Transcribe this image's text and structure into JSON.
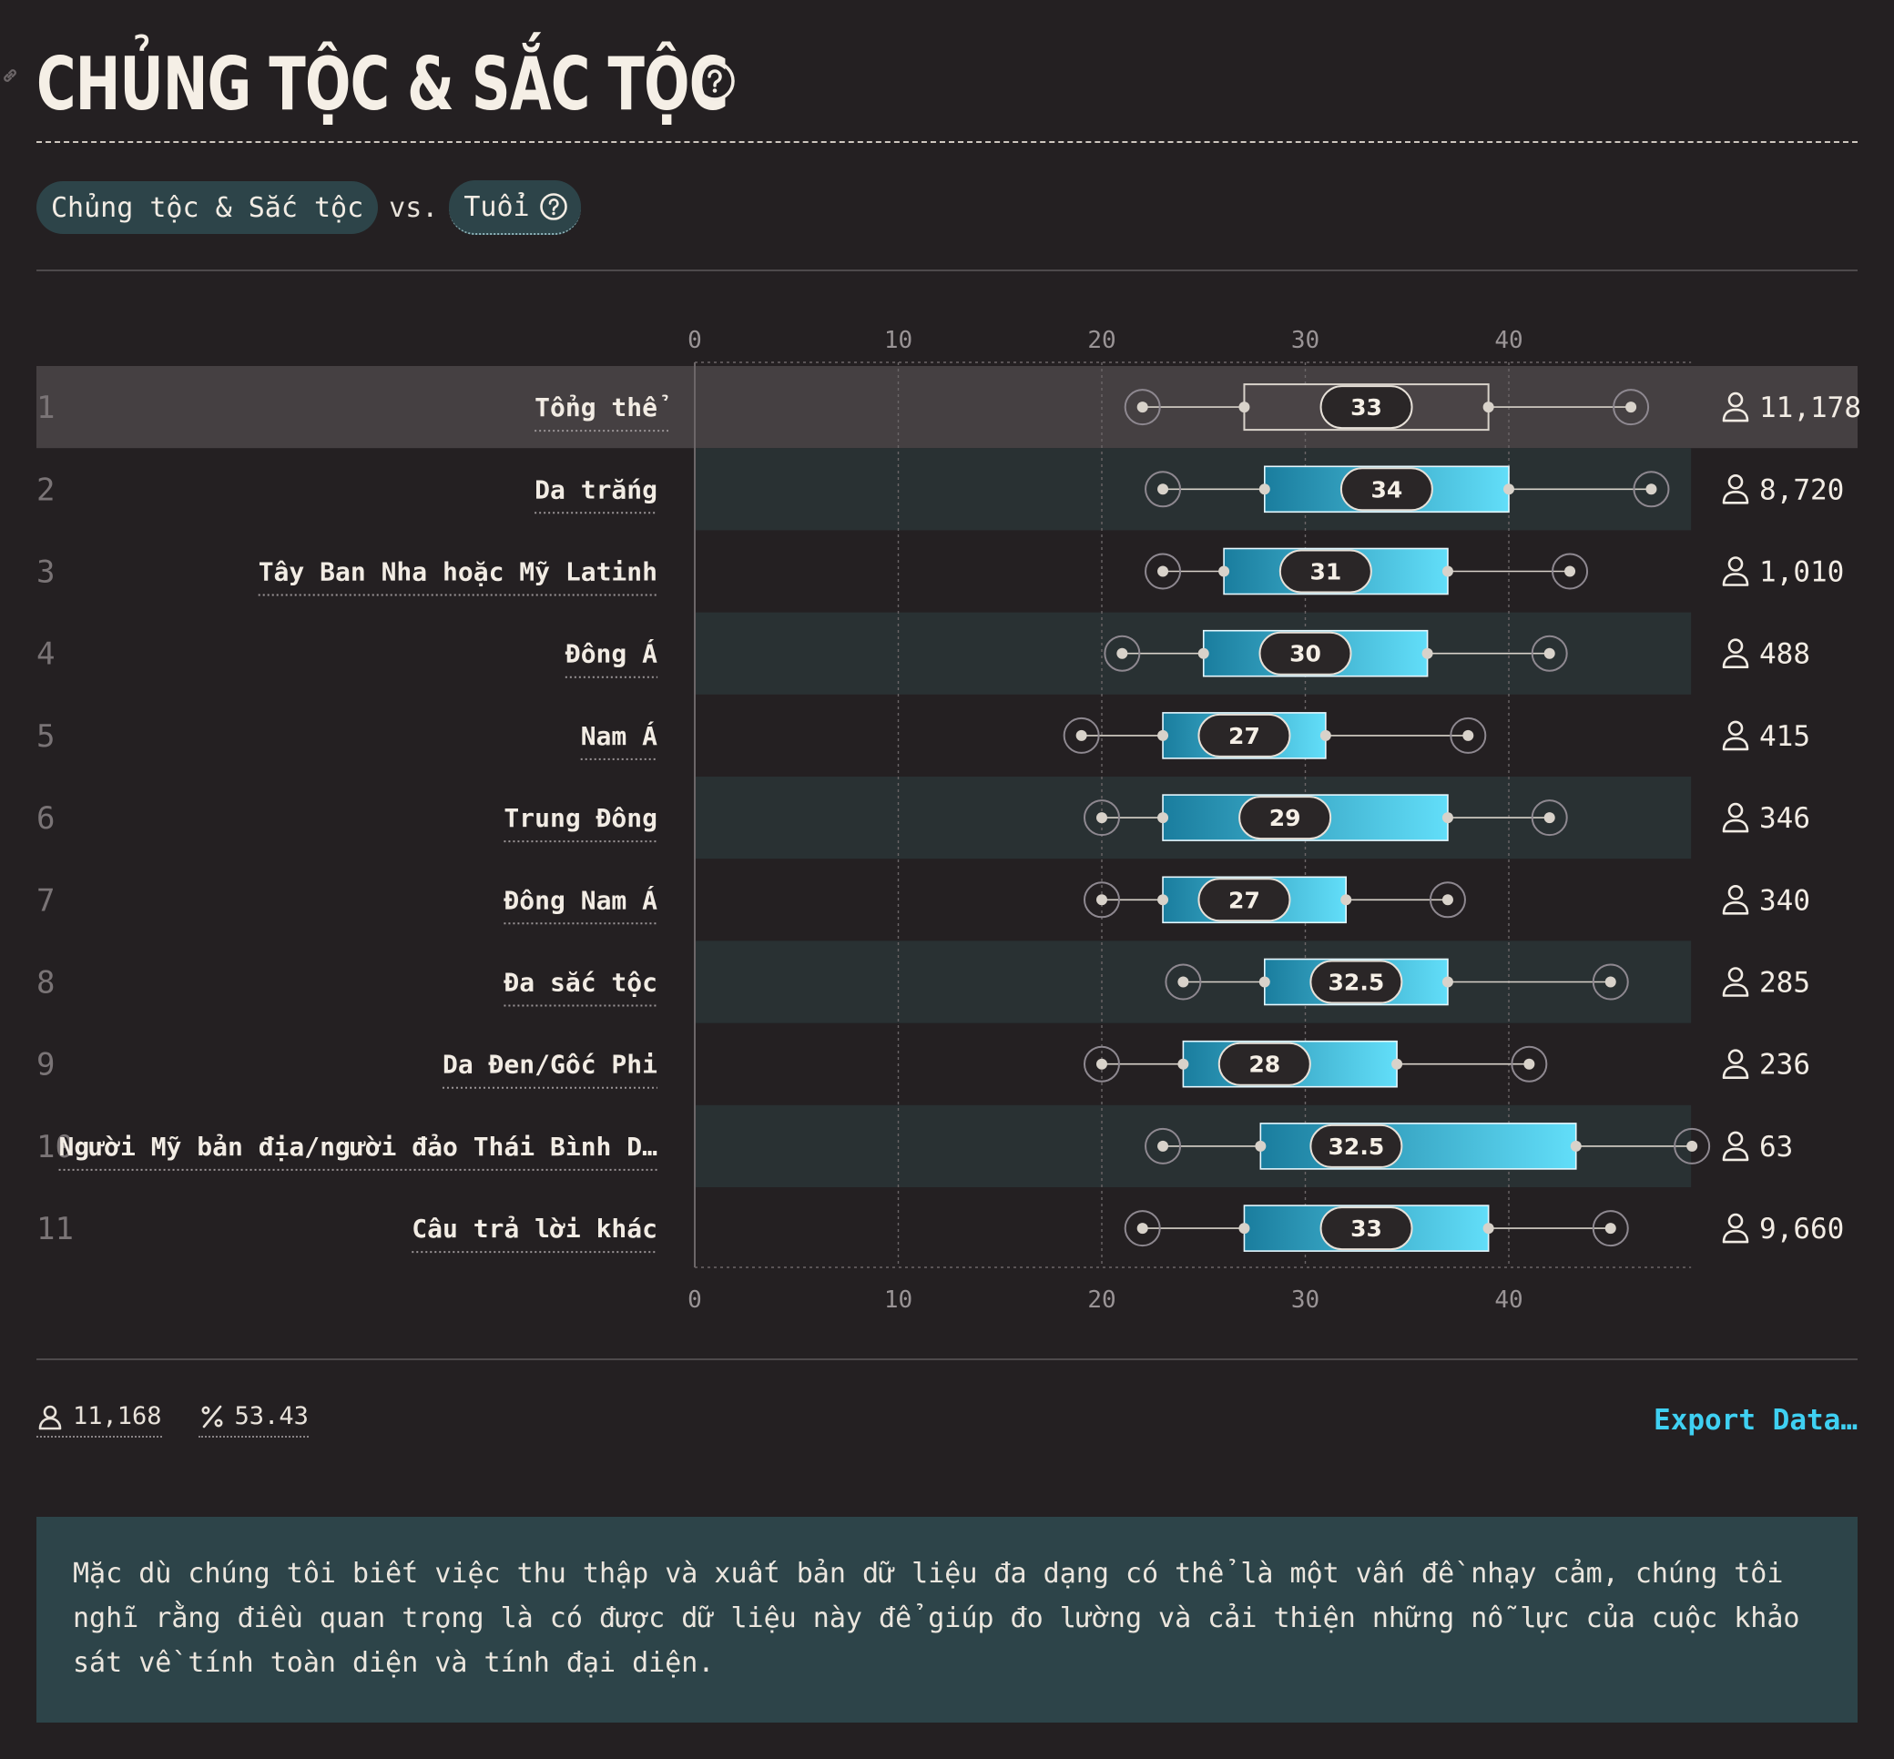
{
  "title": "CHỦNG TỘC & SẮC TỘC",
  "icons": {
    "title_help": "help-circle-icon",
    "link": "link-icon",
    "respondents": "person-icon",
    "percent": "percent-icon"
  },
  "selector": {
    "left_label": "Chủng tộc & Sắc tộc",
    "vs_label": "vs.",
    "right_label": "Tuổi"
  },
  "chart_data": {
    "type": "boxplot",
    "orientation": "horizontal",
    "xlim": [
      0,
      49
    ],
    "xticks": [
      0,
      10,
      20,
      30,
      40
    ],
    "grid": true,
    "colors": {
      "box_start": "#1a7d9e",
      "box_end": "#62def9",
      "overall_box": "#4a4446",
      "row_band": "#293133",
      "highlight_row": "#454042"
    },
    "rows": [
      {
        "rank": "1",
        "label": "Tổng thể",
        "min": 22,
        "q1": 27,
        "median": 33,
        "q3": 39,
        "max": 46,
        "count": "11,178",
        "highlight": true
      },
      {
        "rank": "2",
        "label": "Da trắng",
        "min": 23,
        "q1": 28,
        "median": 34,
        "q3": 40,
        "max": 47,
        "count": "8,720"
      },
      {
        "rank": "3",
        "label": "Tây Ban Nha hoặc Mỹ Latinh",
        "min": 23,
        "q1": 26,
        "median": 31,
        "q3": 37,
        "max": 43,
        "count": "1,010"
      },
      {
        "rank": "4",
        "label": "Đông Á",
        "min": 21,
        "q1": 25,
        "median": 30,
        "q3": 36,
        "max": 42,
        "count": "488"
      },
      {
        "rank": "5",
        "label": "Nam Á",
        "min": 19,
        "q1": 23,
        "median": 27,
        "q3": 31,
        "max": 38,
        "count": "415"
      },
      {
        "rank": "6",
        "label": "Trung Đông",
        "min": 20,
        "q1": 23,
        "median": 29,
        "q3": 37,
        "max": 42,
        "count": "346"
      },
      {
        "rank": "7",
        "label": "Đông Nam Á",
        "min": 20,
        "q1": 23,
        "median": 27,
        "q3": 32,
        "max": 37,
        "count": "340"
      },
      {
        "rank": "8",
        "label": "Đa sắc tộc",
        "min": 24,
        "q1": 28,
        "median": 32.5,
        "q3": 37,
        "max": 45,
        "count": "285"
      },
      {
        "rank": "9",
        "label": "Da Đen/Gốc Phi",
        "min": 20,
        "q1": 24,
        "median": 28,
        "q3": 34.5,
        "max": 41,
        "count": "236"
      },
      {
        "rank": "10",
        "label": "Người Mỹ bản địa/người đảo Thái Bình D…",
        "min": 23,
        "q1": 27.8,
        "median": 32.5,
        "q3": 43.3,
        "max": 49,
        "count": "63"
      },
      {
        "rank": "11",
        "label": "Câu trả lời khác",
        "min": 22,
        "q1": 27,
        "median": 33,
        "q3": 39,
        "max": 45,
        "count": "9,660"
      }
    ]
  },
  "footer": {
    "respondents": "11,168",
    "percent": "53.43",
    "export_label": "Export Data…"
  },
  "note": "Mặc dù chúng tôi biết việc thu thập và xuất bản dữ liệu đa dạng có thể là một vấn đề nhạy cảm, chúng tôi nghĩ rằng điều quan trọng là có được dữ liệu này để giúp đo lường và cải thiện những nỗ lực của cuộc khảo sát về tính toàn diện và tính đại diện."
}
